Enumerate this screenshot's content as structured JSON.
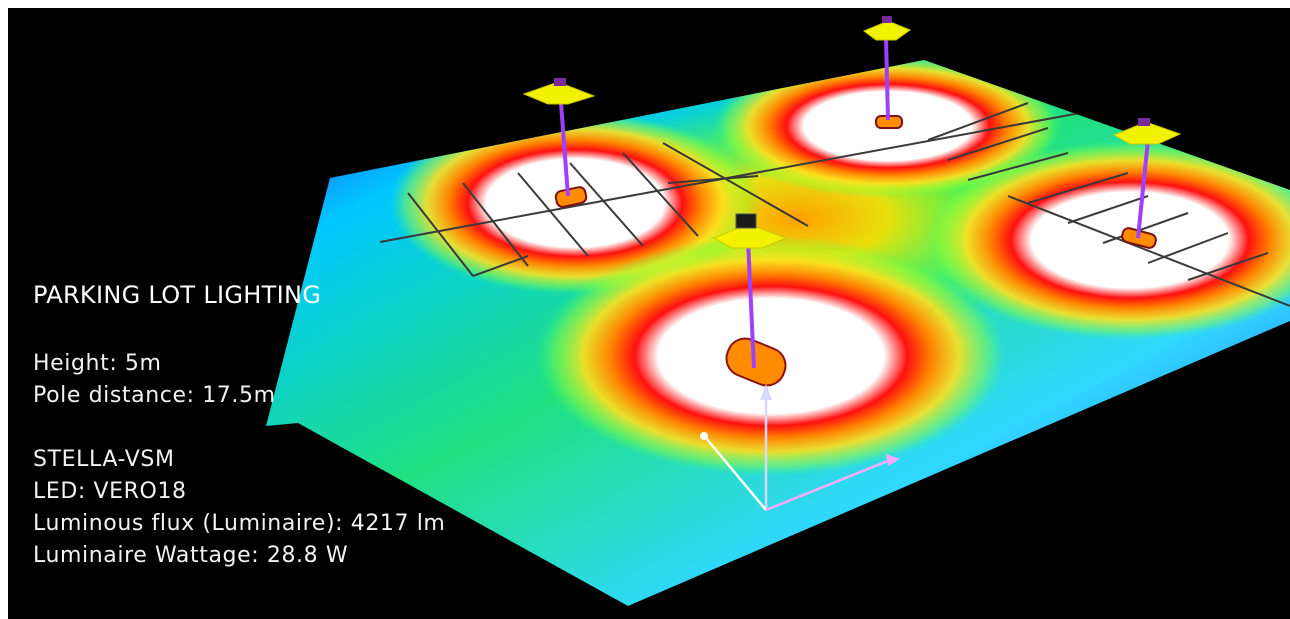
{
  "title": "PARKING LOT LIGHTING",
  "specs": {
    "height": "Height: 5m",
    "pole_distance": "Pole distance: 17.5m",
    "product": "STELLA-VSM",
    "led": "LED: VERO18",
    "flux": "Luminous flux (Luminaire): 4217 lm",
    "wattage": "Luminaire Wattage: 28.8 W"
  },
  "colors": {
    "background": "#000000",
    "text": "#ffffff",
    "heat_low": "#2a1aff",
    "heat_mid": "#20e060",
    "heat_high": "#ff2000",
    "heat_peak": "#ffffff",
    "pole": "#8a2be2",
    "luminaire": "#f2f200"
  }
}
